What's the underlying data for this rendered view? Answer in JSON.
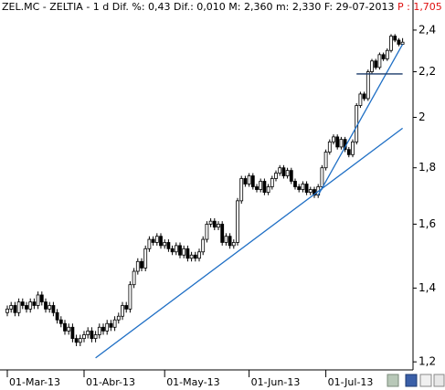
{
  "chart_data": {
    "type": "candlestick",
    "title": "ZEL.MC - ZELTIA - 1 d Dif. %: 0,43 Dif.: 0,010 M: 2,360 m: 2,330 F: 29-07-2013",
    "price_label": "P : 1,705",
    "price_label_color": "#e01010",
    "categories": [
      "01-Mar-13",
      null,
      null,
      null,
      null,
      null,
      null,
      null,
      null,
      null,
      null,
      null,
      null,
      null,
      null,
      null,
      null,
      null,
      null,
      null,
      "01-Abr-13",
      null,
      null,
      null,
      null,
      null,
      null,
      null,
      null,
      null,
      null,
      null,
      null,
      null,
      null,
      null,
      null,
      null,
      null,
      null,
      null,
      "01-May-13",
      null,
      null,
      null,
      null,
      null,
      null,
      null,
      null,
      null,
      null,
      null,
      null,
      null,
      null,
      null,
      null,
      null,
      null,
      null,
      null,
      null,
      "01-Jun-13",
      null,
      null,
      null,
      null,
      null,
      null,
      null,
      null,
      null,
      null,
      null,
      null,
      null,
      null,
      null,
      null,
      null,
      null,
      null,
      "01-Jul-13",
      null,
      null,
      null,
      null,
      null,
      null,
      null,
      null,
      null,
      null,
      null,
      null,
      null,
      null,
      null,
      null,
      null,
      null,
      null,
      null
    ],
    "open": [
      1.33,
      1.34,
      1.35,
      1.33,
      1.36,
      1.35,
      1.34,
      1.36,
      1.35,
      1.38,
      1.36,
      1.34,
      1.35,
      1.33,
      1.31,
      1.3,
      1.28,
      1.29,
      1.26,
      1.25,
      1.26,
      1.27,
      1.28,
      1.26,
      1.27,
      1.29,
      1.28,
      1.3,
      1.29,
      1.31,
      1.32,
      1.35,
      1.34,
      1.41,
      1.45,
      1.48,
      1.46,
      1.52,
      1.55,
      1.54,
      1.56,
      1.53,
      1.54,
      1.52,
      1.51,
      1.53,
      1.5,
      1.52,
      1.49,
      1.5,
      1.49,
      1.51,
      1.55,
      1.6,
      1.61,
      1.59,
      1.6,
      1.54,
      1.56,
      1.53,
      1.54,
      1.68,
      1.76,
      1.74,
      1.77,
      1.73,
      1.72,
      1.75,
      1.71,
      1.73,
      1.76,
      1.78,
      1.8,
      1.77,
      1.79,
      1.75,
      1.73,
      1.72,
      1.74,
      1.71,
      1.72,
      1.7,
      1.73,
      1.8,
      1.86,
      1.9,
      1.92,
      1.88,
      1.91,
      1.87,
      1.85,
      1.9,
      2.05,
      2.1,
      2.08,
      2.2,
      2.25,
      2.22,
      2.28,
      2.26,
      2.3,
      2.37,
      2.35,
      2.33
    ],
    "high": [
      1.35,
      1.36,
      1.36,
      1.37,
      1.37,
      1.36,
      1.37,
      1.37,
      1.39,
      1.39,
      1.37,
      1.36,
      1.36,
      1.34,
      1.32,
      1.31,
      1.3,
      1.3,
      1.27,
      1.27,
      1.28,
      1.29,
      1.29,
      1.28,
      1.3,
      1.3,
      1.31,
      1.31,
      1.32,
      1.33,
      1.36,
      1.36,
      1.42,
      1.46,
      1.49,
      1.49,
      1.53,
      1.56,
      1.56,
      1.57,
      1.57,
      1.55,
      1.55,
      1.53,
      1.54,
      1.54,
      1.53,
      1.53,
      1.51,
      1.51,
      1.52,
      1.56,
      1.61,
      1.62,
      1.62,
      1.61,
      1.61,
      1.57,
      1.57,
      1.55,
      1.69,
      1.77,
      1.77,
      1.78,
      1.78,
      1.74,
      1.76,
      1.76,
      1.74,
      1.77,
      1.79,
      1.81,
      1.81,
      1.8,
      1.8,
      1.76,
      1.74,
      1.75,
      1.75,
      1.73,
      1.73,
      1.74,
      1.81,
      1.87,
      1.91,
      1.93,
      1.93,
      1.92,
      1.92,
      1.88,
      1.91,
      2.06,
      2.11,
      2.11,
      2.21,
      2.26,
      2.26,
      2.29,
      2.29,
      2.31,
      2.38,
      2.38,
      2.36,
      2.36
    ],
    "low": [
      1.32,
      1.33,
      1.32,
      1.32,
      1.34,
      1.33,
      1.33,
      1.34,
      1.34,
      1.35,
      1.33,
      1.33,
      1.32,
      1.3,
      1.29,
      1.27,
      1.27,
      1.25,
      1.24,
      1.24,
      1.25,
      1.26,
      1.25,
      1.25,
      1.26,
      1.27,
      1.27,
      1.28,
      1.28,
      1.3,
      1.31,
      1.33,
      1.33,
      1.4,
      1.44,
      1.45,
      1.45,
      1.51,
      1.53,
      1.53,
      1.52,
      1.52,
      1.51,
      1.5,
      1.5,
      1.49,
      1.49,
      1.48,
      1.48,
      1.48,
      1.48,
      1.5,
      1.54,
      1.59,
      1.58,
      1.58,
      1.53,
      1.53,
      1.52,
      1.52,
      1.53,
      1.67,
      1.73,
      1.73,
      1.72,
      1.71,
      1.71,
      1.7,
      1.7,
      1.72,
      1.75,
      1.77,
      1.76,
      1.76,
      1.74,
      1.72,
      1.71,
      1.71,
      1.7,
      1.7,
      1.69,
      1.69,
      1.72,
      1.79,
      1.85,
      1.89,
      1.87,
      1.87,
      1.86,
      1.84,
      1.84,
      1.89,
      2.04,
      2.07,
      2.07,
      2.19,
      2.21,
      2.21,
      2.25,
      2.25,
      2.29,
      2.34,
      2.32,
      2.33
    ],
    "close": [
      1.34,
      1.35,
      1.33,
      1.36,
      1.35,
      1.34,
      1.36,
      1.35,
      1.38,
      1.36,
      1.34,
      1.35,
      1.33,
      1.31,
      1.3,
      1.28,
      1.29,
      1.26,
      1.25,
      1.26,
      1.27,
      1.28,
      1.26,
      1.27,
      1.29,
      1.28,
      1.3,
      1.29,
      1.31,
      1.32,
      1.35,
      1.34,
      1.41,
      1.45,
      1.48,
      1.46,
      1.52,
      1.55,
      1.54,
      1.56,
      1.53,
      1.54,
      1.52,
      1.51,
      1.53,
      1.5,
      1.52,
      1.49,
      1.5,
      1.49,
      1.51,
      1.55,
      1.6,
      1.61,
      1.59,
      1.6,
      1.54,
      1.56,
      1.53,
      1.54,
      1.68,
      1.76,
      1.74,
      1.77,
      1.73,
      1.72,
      1.75,
      1.71,
      1.73,
      1.76,
      1.78,
      1.8,
      1.77,
      1.79,
      1.75,
      1.73,
      1.72,
      1.74,
      1.71,
      1.72,
      1.7,
      1.73,
      1.8,
      1.86,
      1.9,
      1.92,
      1.88,
      1.91,
      1.87,
      1.85,
      1.9,
      2.05,
      2.1,
      2.08,
      2.2,
      2.25,
      2.22,
      2.28,
      2.26,
      2.3,
      2.37,
      2.35,
      2.33,
      2.34
    ],
    "up_color": "#ffffff",
    "down_color": "#000000",
    "log_scale": true,
    "grid": false,
    "ylim": [
      1.18,
      2.46
    ],
    "yticks": [
      {
        "value": 1.2,
        "label": "1,2"
      },
      {
        "value": 1.4,
        "label": "1,4"
      },
      {
        "value": 1.6,
        "label": "1,6"
      },
      {
        "value": 1.8,
        "label": "1,8"
      },
      2,
      {
        "value": 2.2,
        "label": "2,2"
      },
      {
        "value": 2.4,
        "label": "2,4"
      }
    ],
    "trendlines": [
      {
        "x": [
          23,
          103
        ],
        "y": [
          1.21,
          1.955
        ],
        "color": "#1f6fc5"
      },
      {
        "x": [
          81,
          103
        ],
        "y": [
          1.7,
          2.33
        ],
        "color": "#1f6fc5"
      },
      {
        "x": [
          91,
          103
        ],
        "y": [
          2.19,
          2.19
        ],
        "color": "#1a3a6a"
      }
    ]
  }
}
